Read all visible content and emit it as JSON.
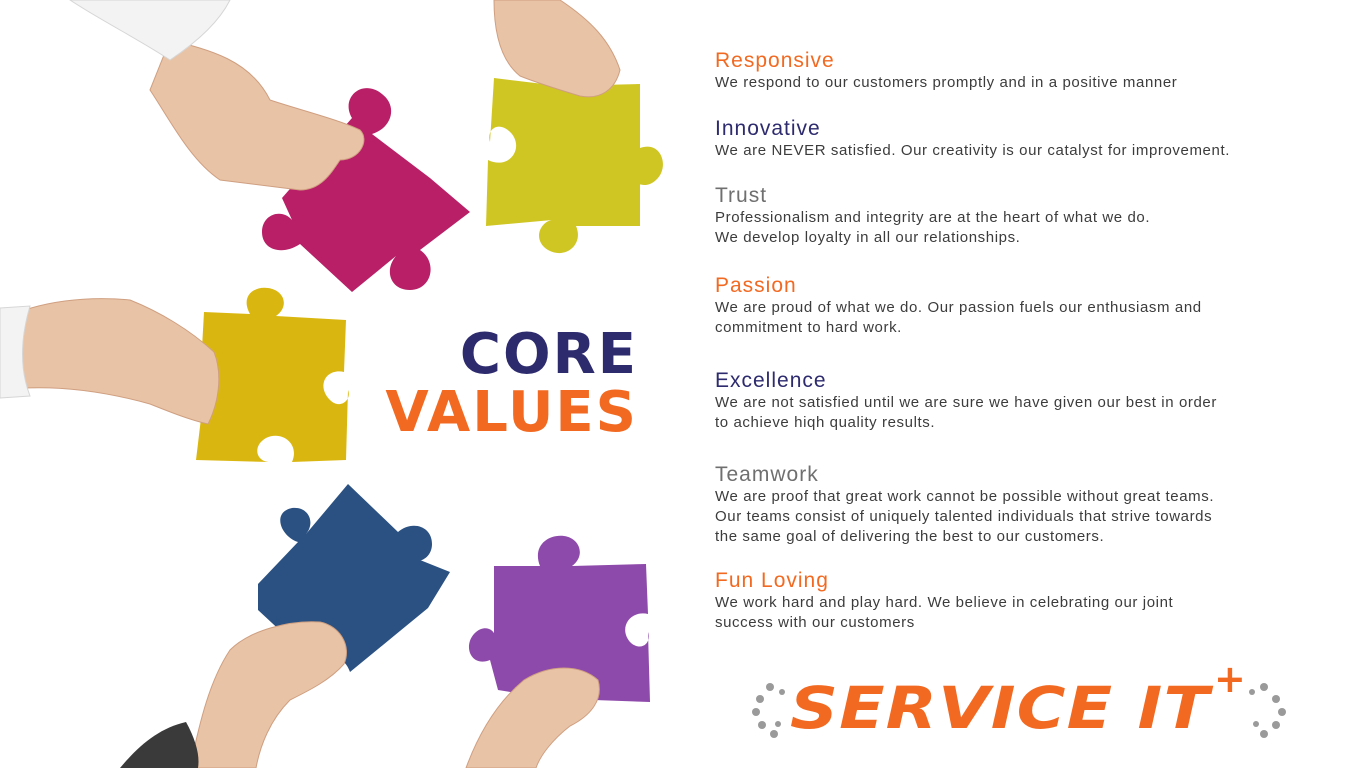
{
  "title": {
    "line1": "CORE",
    "line2": "VALUES"
  },
  "values": [
    {
      "heading": "Responsive",
      "text": "We respond to our customers promptly and in a positive manner",
      "color": "#f26a22"
    },
    {
      "heading": "Innovative",
      "text": "We are NEVER satisfied. Our creativity is our catalyst for improvement.",
      "color": "#2d2a6e"
    },
    {
      "heading": "Trust",
      "text": "Professionalism and integrity are at the heart of what we do.\nWe develop loyalty in all our relationships.",
      "color": "#6f6f6f"
    },
    {
      "heading": "Passion",
      "text": "We are proud of what we do. Our passion fuels our enthusiasm and\ncommitment to hard work.",
      "color": "#f26a22"
    },
    {
      "heading": "Excellence",
      "text": "We are not satisfied until we are sure we have given our best in order\nto achieve hiqh quality results.",
      "color": "#2d2a6e"
    },
    {
      "heading": "Teamwork",
      "text": "We are proof that great work cannot be possible without great teams.\nOur teams consist of uniquely talented individuals that strive towards\nthe same goal of delivering the best to our customers.",
      "color": "#6f6f6f"
    },
    {
      "heading": "Fun Loving",
      "text": "We work hard and play hard. We believe in celebrating our joint\nsuccess with our customers",
      "color": "#f26a22"
    }
  ],
  "logo": {
    "text": "SERVICE IT",
    "superscript": "+",
    "text_color": "#f26a22",
    "plus_color": "#f26a22",
    "dot_color": "#9a9a9a"
  },
  "puzzle_colors": {
    "magenta": "#b81f66",
    "lime": "#cfc624",
    "yellow": "#dab710",
    "blue": "#2a5182",
    "purple": "#8e4aaa"
  }
}
